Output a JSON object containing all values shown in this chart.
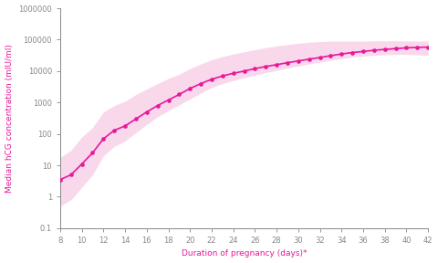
{
  "days": [
    8,
    9,
    10,
    11,
    12,
    13,
    14,
    15,
    16,
    17,
    18,
    19,
    20,
    21,
    22,
    23,
    24,
    25,
    26,
    27,
    28,
    29,
    30,
    31,
    32,
    33,
    34,
    35,
    36,
    37,
    38,
    39,
    40,
    41,
    42
  ],
  "median": [
    3.5,
    5.0,
    11,
    25,
    70,
    130,
    180,
    300,
    500,
    800,
    1200,
    1800,
    2800,
    4000,
    5500,
    7000,
    8500,
    10000,
    12000,
    14000,
    16000,
    18500,
    21000,
    24000,
    27000,
    31000,
    35000,
    39000,
    42000,
    46000,
    49000,
    52000,
    55000,
    57000,
    58000
  ],
  "lower": [
    0.5,
    0.8,
    2,
    5,
    20,
    40,
    60,
    110,
    200,
    350,
    550,
    850,
    1300,
    2000,
    3000,
    4000,
    5000,
    6200,
    7500,
    9000,
    10500,
    12500,
    14500,
    17000,
    19500,
    22000,
    25000,
    28000,
    30000,
    32000,
    33000,
    34000,
    34000,
    33000,
    32000
  ],
  "upper": [
    18,
    30,
    80,
    160,
    500,
    800,
    1100,
    1800,
    2700,
    4000,
    5800,
    8000,
    12000,
    17000,
    23000,
    29000,
    35000,
    41000,
    48000,
    56000,
    63000,
    70000,
    77000,
    83000,
    87000,
    90000,
    90000,
    90000,
    90000,
    92000,
    92000,
    92000,
    91000,
    90000,
    90000
  ],
  "line_color": "#e8189a",
  "fill_color": "#f5b8dd",
  "fill_alpha": 0.55,
  "marker": "o",
  "marker_size": 3.0,
  "line_width": 1.2,
  "xlabel": "Duration of pregnancy (days)*",
  "ylabel": "Median hCG concentration (mIU/ml)",
  "xlim": [
    8,
    42
  ],
  "ylim": [
    0.1,
    1000000
  ],
  "xticks": [
    8,
    10,
    12,
    14,
    16,
    18,
    20,
    22,
    24,
    26,
    28,
    30,
    32,
    34,
    36,
    38,
    40,
    42
  ],
  "yticks": [
    0.1,
    1,
    10,
    100,
    1000,
    10000,
    100000,
    1000000
  ],
  "ytick_labels": [
    "0.1",
    "1",
    "10",
    "100",
    "1000",
    "10000",
    "100000",
    "1000000"
  ],
  "xlabel_color": "#e8189a",
  "ylabel_color": "#e8189a",
  "bg_color": "#ffffff",
  "axis_color": "#888888",
  "tick_color": "#888888",
  "label_fontsize": 6.5,
  "tick_fontsize": 6.0
}
